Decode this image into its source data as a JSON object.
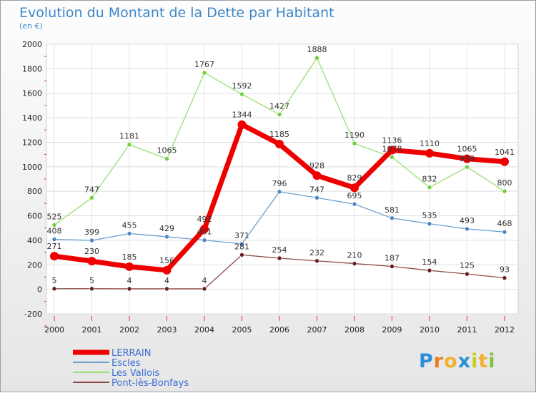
{
  "header": {
    "title": "Evolution du Montant de la Dette par Habitant",
    "unit": "(en €)"
  },
  "brand": {
    "letters": [
      "P",
      "r",
      "o",
      "x",
      "i",
      "t",
      "i"
    ],
    "colors": [
      "#2a8fd6",
      "#e8801e",
      "#f2b134",
      "#2a8fd6",
      "#c4cf2a",
      "#f2b134",
      "#7ec242"
    ]
  },
  "chart_data": {
    "type": "line",
    "title": "Evolution du Montant de la Dette par Habitant",
    "ylabel": "(en €)",
    "xlabel": "",
    "x": [
      "2000",
      "2001",
      "2002",
      "2003",
      "2004",
      "2005",
      "2006",
      "2007",
      "2008",
      "2009",
      "2010",
      "2011",
      "2012"
    ],
    "yticks": [
      "2000",
      "1800",
      "1600",
      "1400",
      "1200",
      "1000",
      "800",
      "600",
      "400",
      "200",
      "0",
      "-200"
    ],
    "ylim": [
      -200,
      2000
    ],
    "grid": true,
    "legend_position": "bottom-left",
    "series": [
      {
        "name": "LERRAIN",
        "color": "#ee0000",
        "marker": "#ee0000",
        "width": 7,
        "r": 6,
        "values": [
          271,
          230,
          185,
          156,
          492,
          1344,
          1185,
          928,
          829,
          1136,
          1110,
          1065,
          1041
        ],
        "labels": [
          "271",
          "230",
          "185",
          "156",
          "492",
          "1344",
          "1185",
          "928",
          "829",
          "1136",
          "1110",
          "1065",
          "1041"
        ]
      },
      {
        "name": "Escles",
        "color": "#6aa0d0",
        "marker": "#4f86c0",
        "width": 1.3,
        "r": 3,
        "values": [
          408,
          399,
          455,
          429,
          401,
          371,
          796,
          747,
          695,
          581,
          535,
          493,
          468
        ],
        "labels": [
          "408",
          "399",
          "455",
          "429",
          "401",
          "371",
          "796",
          "747",
          "695",
          "581",
          "535",
          "493",
          "468"
        ]
      },
      {
        "name": "Les Vallois",
        "color": "#98e070",
        "marker": "#6fcf3b",
        "width": 1.3,
        "r": 3,
        "values": [
          525,
          747,
          1181,
          1065,
          1767,
          1592,
          1427,
          1888,
          1190,
          1078,
          832,
          998,
          800
        ],
        "labels": [
          "525",
          "747",
          "1181",
          "1065",
          "1767",
          "1592",
          "1427",
          "1888",
          "1190",
          "1078",
          "832",
          "998",
          "800"
        ]
      },
      {
        "name": "Pont-lès-Bonfays",
        "color": "#8c4a4a",
        "marker": "#6b1e1e",
        "width": 1.3,
        "r": 3,
        "values": [
          5,
          5,
          4,
          4,
          4,
          281,
          254,
          232,
          210,
          187,
          154,
          125,
          93
        ],
        "labels": [
          "5",
          "5",
          "4",
          "4",
          "4",
          "281",
          "254",
          "232",
          "210",
          "187",
          "154",
          "125",
          "93"
        ]
      }
    ]
  }
}
